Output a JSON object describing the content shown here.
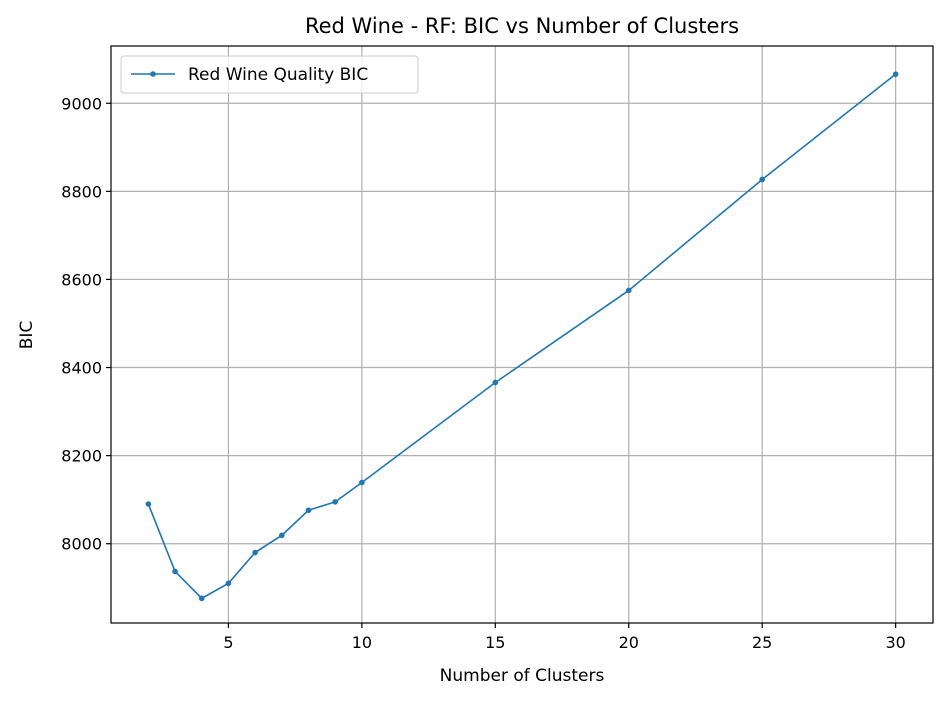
{
  "chart_data": {
    "type": "line",
    "title": "Red Wine - RF: BIC vs Number of Clusters",
    "xlabel": "Number of Clusters",
    "ylabel": "BIC",
    "xlim": [
      0.6,
      31.4
    ],
    "ylim": [
      7820,
      9130
    ],
    "xticks": [
      5,
      10,
      15,
      20,
      25,
      30
    ],
    "yticks": [
      8000,
      8200,
      8400,
      8600,
      8800,
      9000
    ],
    "grid": true,
    "legend_position": "top-left",
    "series": [
      {
        "name": "Red Wine Quality BIC",
        "color": "#1f77b4",
        "marker": "circle",
        "x": [
          2,
          3,
          4,
          5,
          6,
          7,
          8,
          9,
          10,
          15,
          20,
          25,
          30
        ],
        "y": [
          8090,
          7937,
          7876,
          7910,
          7980,
          8019,
          8076,
          8095,
          8139,
          8366,
          8575,
          8827,
          9066
        ]
      }
    ]
  }
}
